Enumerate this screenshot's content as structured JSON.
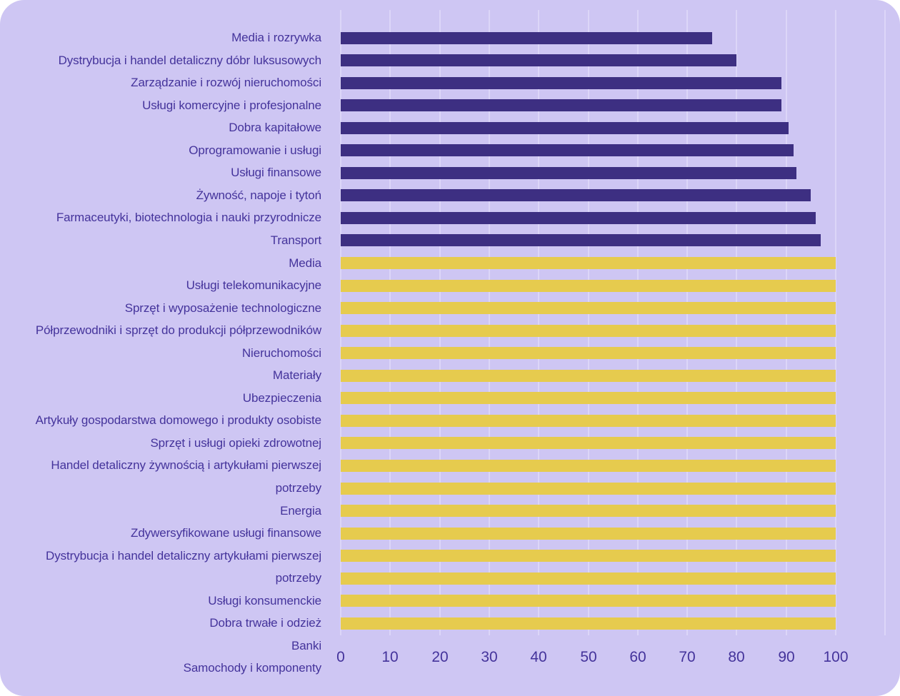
{
  "colors": {
    "page_background": "#ffffff",
    "card_background": "#cec6f3",
    "gridline": "#dcd6f8",
    "text": "#44339b",
    "bar_dark": "#3d2f82",
    "bar_yellow": "#e6cb4e"
  },
  "chart_data": {
    "type": "bar",
    "orientation": "horizontal",
    "title": "",
    "xlabel": "",
    "ylabel": "",
    "xlim": [
      0,
      110
    ],
    "xticks": [
      0,
      10,
      20,
      30,
      40,
      50,
      60,
      70,
      80,
      90,
      100
    ],
    "grid": "vertical gridlines every 10 units from 0 to 110",
    "legend": "none",
    "categories": [
      "Media i rozrywka",
      "Dystrybucja i handel detaliczny dóbr luksusowych",
      "Zarządzanie i rozwój nieruchomości",
      "Usługi komercyjne i profesjonalne",
      "Dobra kapitałowe",
      "Oprogramowanie i usługi",
      "Usługi finansowe",
      "Żywność, napoje i tytoń",
      "Farmaceutyki, biotechnologia i nauki przyrodnicze",
      "Transport",
      "Media",
      "Usługi telekomunikacyjne",
      "Sprzęt i wyposażenie technologiczne",
      "Półprzewodniki i sprzęt do produkcji półprzewodników",
      "Nieruchomości",
      "Materiały",
      "Ubezpieczenia",
      "Artykuły gospodarstwa domowego i produkty osobiste",
      "Sprzęt i usługi opieki zdrowotnej",
      "Handel detaliczny żywnością i artykułami pierwszej",
      "potrzeby",
      "Energia",
      "Zdywersyfikowane usługi finansowe",
      "Dystrybucja i handel detaliczny artykułami pierwszej",
      "potrzeby",
      "Usługi konsumenckie",
      "Dobra trwałe i odzież",
      "Banki",
      "Samochody i komponenty"
    ],
    "values": [
      75,
      80,
      89,
      89,
      90.5,
      91.5,
      92,
      95,
      96,
      97,
      100,
      100,
      100,
      100,
      100,
      100,
      100,
      100,
      100,
      100,
      100,
      100,
      100,
      100,
      100,
      100,
      100,
      0,
      0
    ],
    "bar_color_keys": [
      "dark",
      "dark",
      "dark",
      "dark",
      "dark",
      "dark",
      "dark",
      "dark",
      "dark",
      "dark",
      "yellow",
      "yellow",
      "yellow",
      "yellow",
      "yellow",
      "yellow",
      "yellow",
      "yellow",
      "yellow",
      "yellow",
      "yellow",
      "yellow",
      "yellow",
      "yellow",
      "yellow",
      "yellow",
      "yellow",
      "none",
      "none"
    ]
  }
}
